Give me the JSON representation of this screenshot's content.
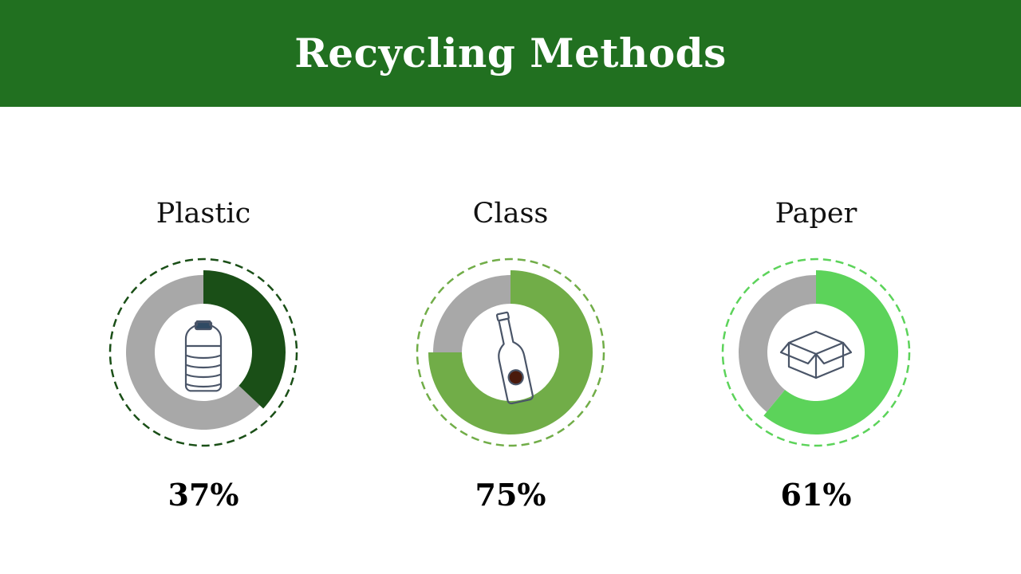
{
  "header": {
    "title": "Recycling Methods",
    "color": "#217020"
  },
  "chart_data": {
    "type": "pie",
    "style": "donut",
    "items": [
      {
        "label": "Plastic",
        "value": 37,
        "display": "37%",
        "color": "#1a4f17",
        "track_color": "#a8a8a8",
        "icon": "plastic-bottle-icon"
      },
      {
        "label": "Class",
        "value": 75,
        "display": "75%",
        "color": "#71ad48",
        "track_color": "#a8a8a8",
        "icon": "glass-bottle-icon"
      },
      {
        "label": "Paper",
        "value": 61,
        "display": "61%",
        "color": "#5cd35a",
        "track_color": "#a8a8a8",
        "icon": "cardboard-box-icon"
      }
    ]
  }
}
